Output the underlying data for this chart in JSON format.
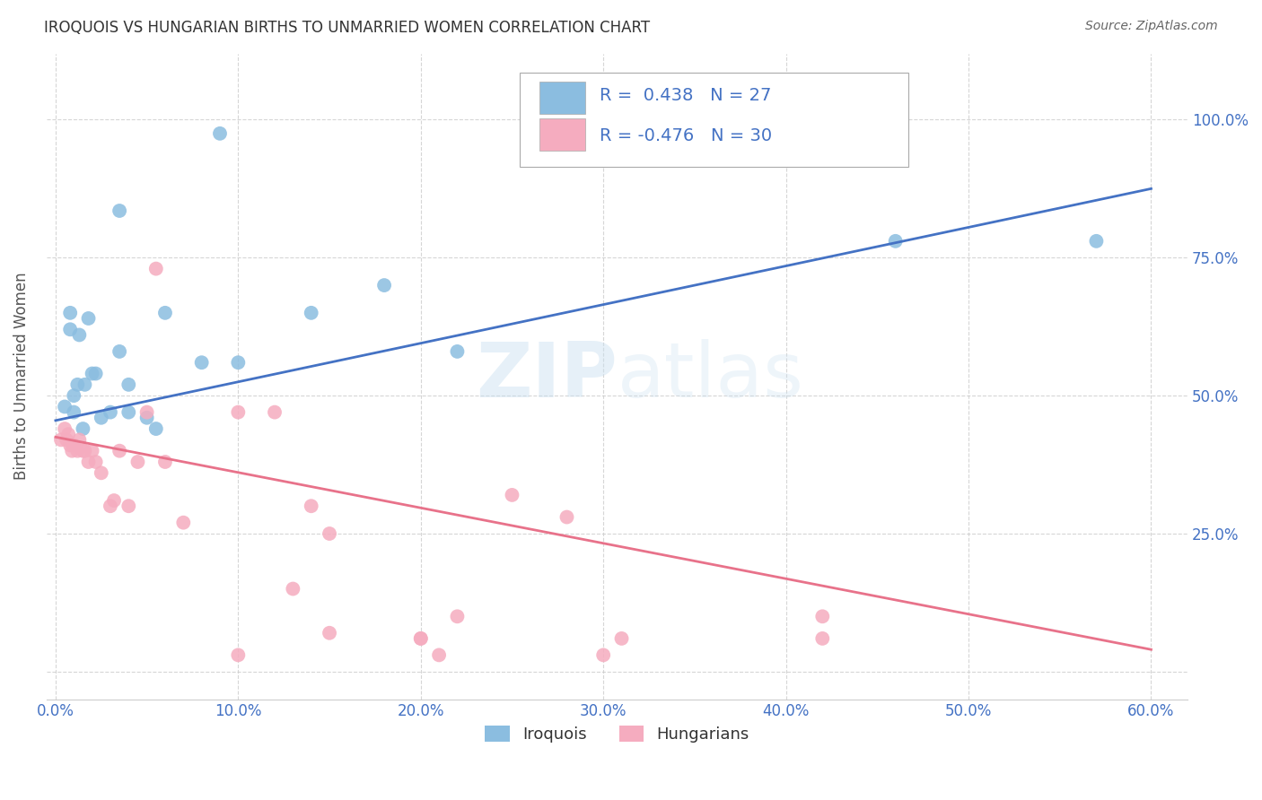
{
  "title": "IROQUOIS VS HUNGARIAN BIRTHS TO UNMARRIED WOMEN CORRELATION CHART",
  "source": "Source: ZipAtlas.com",
  "ylabel_label": "Births to Unmarried Women",
  "xlim": [
    -0.005,
    0.62
  ],
  "ylim": [
    -0.05,
    1.12
  ],
  "xtick_vals": [
    0.0,
    0.1,
    0.2,
    0.3,
    0.4,
    0.5,
    0.6
  ],
  "xtick_labels": [
    "0.0%",
    "10.0%",
    "20.0%",
    "30.0%",
    "40.0%",
    "50.0%",
    "60.0%"
  ],
  "ytick_vals": [
    0.0,
    0.25,
    0.5,
    0.75,
    1.0
  ],
  "ytick_labels_right": [
    "",
    "25.0%",
    "50.0%",
    "75.0%",
    "100.0%"
  ],
  "iroquois_color": "#8BBDE0",
  "hungarian_color": "#F5ACBF",
  "line_blue": "#4472C4",
  "line_pink": "#E8728A",
  "R_iroquois": 0.438,
  "N_iroquois": 27,
  "R_hungarian": -0.476,
  "N_hungarian": 30,
  "blue_line_x0": 0.0,
  "blue_line_y0": 0.455,
  "blue_line_x1": 0.6,
  "blue_line_y1": 0.875,
  "pink_line_x0": 0.0,
  "pink_line_y0": 0.425,
  "pink_line_x1": 0.6,
  "pink_line_y1": 0.04,
  "iroquois_x": [
    0.005,
    0.008,
    0.008,
    0.01,
    0.01,
    0.012,
    0.013,
    0.015,
    0.016,
    0.018,
    0.02,
    0.022,
    0.025,
    0.03,
    0.035,
    0.04,
    0.04,
    0.05,
    0.055,
    0.06,
    0.08,
    0.1,
    0.14,
    0.18,
    0.22,
    0.46,
    0.57
  ],
  "iroquois_y": [
    0.48,
    0.62,
    0.65,
    0.47,
    0.5,
    0.52,
    0.61,
    0.44,
    0.52,
    0.64,
    0.54,
    0.54,
    0.46,
    0.47,
    0.58,
    0.52,
    0.47,
    0.46,
    0.44,
    0.65,
    0.56,
    0.56,
    0.65,
    0.7,
    0.58,
    0.78,
    0.78
  ],
  "iroquois_outlier_x": [
    0.09
  ],
  "iroquois_outlier_y": [
    0.975
  ],
  "iroquois_outlier2_x": [
    0.035
  ],
  "iroquois_outlier2_y": [
    0.835
  ],
  "hungarian_x": [
    0.003,
    0.005,
    0.006,
    0.007,
    0.008,
    0.009,
    0.01,
    0.012,
    0.013,
    0.015,
    0.016,
    0.018,
    0.02,
    0.022,
    0.025,
    0.03,
    0.032,
    0.035,
    0.04,
    0.045,
    0.05,
    0.06,
    0.07,
    0.1,
    0.12,
    0.14,
    0.15,
    0.2,
    0.22,
    0.25
  ],
  "hungarian_y": [
    0.42,
    0.44,
    0.42,
    0.43,
    0.41,
    0.4,
    0.41,
    0.4,
    0.42,
    0.4,
    0.4,
    0.38,
    0.4,
    0.38,
    0.36,
    0.3,
    0.31,
    0.4,
    0.3,
    0.38,
    0.47,
    0.38,
    0.27,
    0.47,
    0.47,
    0.3,
    0.25,
    0.06,
    0.1,
    0.32
  ],
  "hungarian_outlier_x": [
    0.055
  ],
  "hungarian_outlier_y": [
    0.73
  ],
  "hungarian_low1_x": [
    0.13
  ],
  "hungarian_low1_y": [
    0.15
  ],
  "hungarian_low2_x": [
    0.2
  ],
  "hungarian_low2_y": [
    0.06
  ],
  "hungarian_low3_x": [
    0.31
  ],
  "hungarian_low3_y": [
    0.06
  ],
  "hungarian_low4_x": [
    0.42
  ],
  "hungarian_low4_y": [
    0.06
  ],
  "hungarian_low5_x": [
    0.28
  ],
  "hungarian_low5_y": [
    0.28
  ],
  "hungarian_low6_x": [
    0.15
  ],
  "hungarian_low6_y": [
    0.07
  ],
  "hungarian_bottom1_x": [
    0.1
  ],
  "hungarian_bottom1_y": [
    0.03
  ],
  "hungarian_bottom2_x": [
    0.21
  ],
  "hungarian_bottom2_y": [
    0.03
  ],
  "hungarian_bottom3_x": [
    0.3
  ],
  "hungarian_bottom3_y": [
    0.03
  ],
  "hungarian_bottom4_x": [
    0.42
  ],
  "hungarian_bottom4_y": [
    0.1
  ]
}
